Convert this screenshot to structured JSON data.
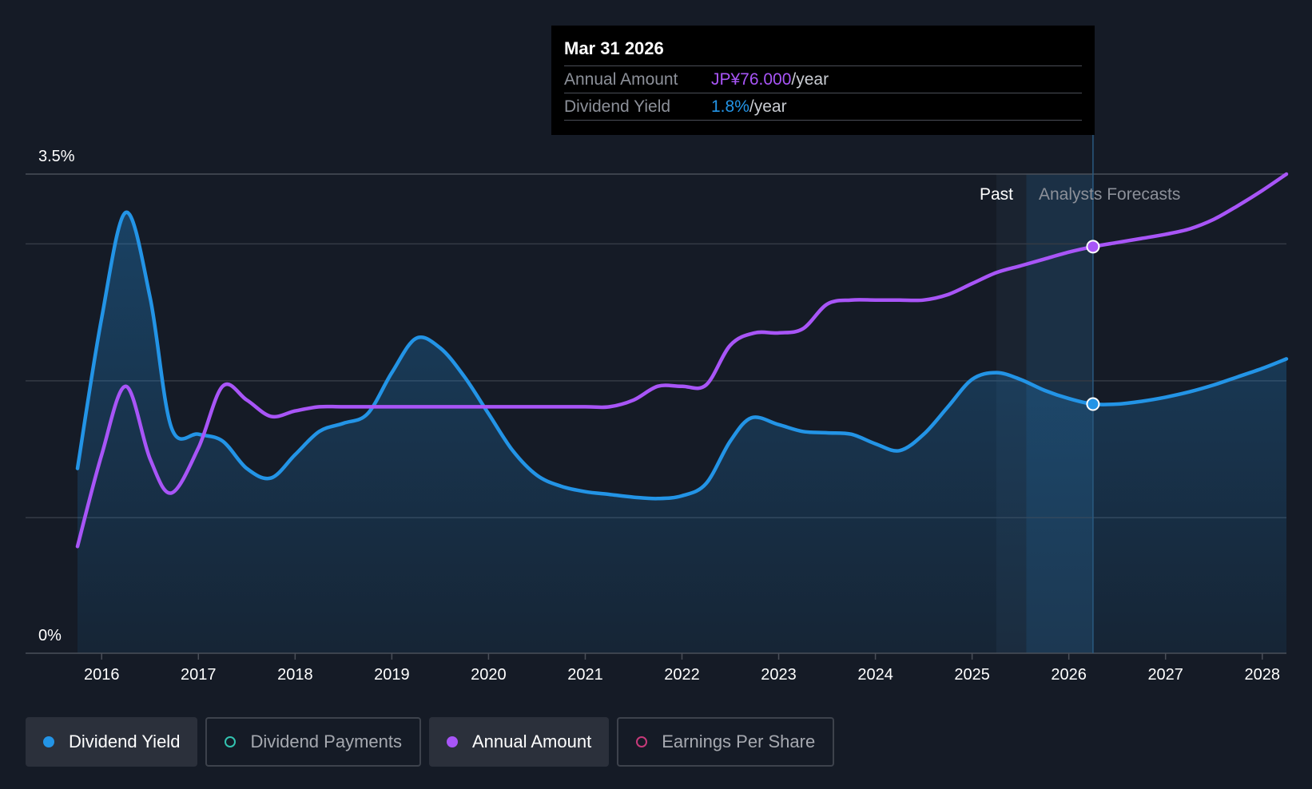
{
  "colors": {
    "background": "#151b26",
    "yield": "#2394e6",
    "annual": "#a855f7",
    "payments": "#33c3b0",
    "eps": "#c73a7a",
    "grid": "#343a45",
    "forecast_band": "#1d3850"
  },
  "tooltip": {
    "date": "Mar 31 2026",
    "annual_label": "Annual Amount",
    "annual_value": "JP¥76.000",
    "annual_unit": "/year",
    "yield_label": "Dividend Yield",
    "yield_value": "1.8%",
    "yield_unit": "/year"
  },
  "region_labels": {
    "past": "Past",
    "forecast": "Analysts Forecasts"
  },
  "legend": [
    {
      "label": "Dividend Yield",
      "icon": "filled-dot",
      "color": "#2394e6",
      "active": true
    },
    {
      "label": "Dividend Payments",
      "icon": "hollow-dot",
      "color": "#33c3b0",
      "active": false
    },
    {
      "label": "Annual Amount",
      "icon": "filled-dot",
      "color": "#a855f7",
      "active": true
    },
    {
      "label": "Earnings Per Share",
      "icon": "hollow-dot",
      "color": "#c73a7a",
      "active": false
    }
  ],
  "chart_data": {
    "type": "line",
    "y_tick_labels": [
      "0%",
      "3.5%"
    ],
    "ylim": [
      0,
      3.5
    ],
    "x_tick_labels": [
      "2016",
      "2017",
      "2018",
      "2019",
      "2020",
      "2021",
      "2022",
      "2023",
      "2024",
      "2025",
      "2026",
      "2027",
      "2028"
    ],
    "xlim": [
      2015.63,
      2028.25
    ],
    "grid": true,
    "past_region": [
      2025.25,
      2025.56
    ],
    "forecast_region": [
      2025.56,
      2026.25
    ],
    "highlight_x": 2026.25,
    "series": [
      {
        "name": "Dividend Yield",
        "color": "#2394e6",
        "filled": true,
        "x": [
          2015.75,
          2016.0,
          2016.25,
          2016.5,
          2016.72,
          2017.0,
          2017.25,
          2017.5,
          2017.75,
          2018.0,
          2018.25,
          2018.5,
          2018.75,
          2019.0,
          2019.25,
          2019.5,
          2019.75,
          2020.0,
          2020.25,
          2020.5,
          2020.75,
          2021.0,
          2021.25,
          2021.5,
          2021.75,
          2022.0,
          2022.25,
          2022.5,
          2022.72,
          2023.0,
          2023.25,
          2023.5,
          2023.75,
          2024.0,
          2024.25,
          2024.5,
          2024.75,
          2025.0,
          2025.25,
          2025.5,
          2025.75,
          2026.0,
          2026.25,
          2026.5,
          2026.75,
          2027.0,
          2027.25,
          2027.5,
          2027.75,
          2028.0,
          2028.25
        ],
        "y": [
          1.35,
          2.45,
          3.22,
          2.6,
          1.65,
          1.6,
          1.55,
          1.35,
          1.28,
          1.45,
          1.62,
          1.68,
          1.75,
          2.05,
          2.3,
          2.23,
          2.02,
          1.75,
          1.48,
          1.3,
          1.22,
          1.18,
          1.16,
          1.14,
          1.13,
          1.15,
          1.24,
          1.55,
          1.72,
          1.67,
          1.62,
          1.61,
          1.6,
          1.53,
          1.48,
          1.6,
          1.8,
          2.0,
          2.05,
          2.0,
          1.92,
          1.86,
          1.82,
          1.82,
          1.84,
          1.87,
          1.91,
          1.96,
          2.02,
          2.08,
          2.15
        ]
      },
      {
        "name": "Annual Amount",
        "color": "#a855f7",
        "filled": false,
        "x": [
          2015.75,
          2016.0,
          2016.25,
          2016.5,
          2016.72,
          2017.0,
          2017.25,
          2017.5,
          2017.75,
          2018.0,
          2018.25,
          2018.5,
          2019.0,
          2019.5,
          2020.0,
          2020.5,
          2021.0,
          2021.25,
          2021.5,
          2021.75,
          2022.0,
          2022.25,
          2022.5,
          2022.75,
          2023.0,
          2023.25,
          2023.5,
          2023.75,
          2024.0,
          2024.25,
          2024.5,
          2024.75,
          2025.0,
          2025.25,
          2025.5,
          2025.75,
          2026.0,
          2026.25,
          2026.5,
          2026.75,
          2027.0,
          2027.25,
          2027.5,
          2027.75,
          2028.0,
          2028.25
        ],
        "y": [
          0.78,
          1.45,
          1.95,
          1.42,
          1.17,
          1.5,
          1.95,
          1.85,
          1.73,
          1.77,
          1.8,
          1.8,
          1.8,
          1.8,
          1.8,
          1.8,
          1.8,
          1.8,
          1.85,
          1.95,
          1.95,
          1.96,
          2.25,
          2.34,
          2.34,
          2.37,
          2.55,
          2.58,
          2.58,
          2.58,
          2.58,
          2.62,
          2.7,
          2.78,
          2.83,
          2.88,
          2.93,
          2.97,
          3.0,
          3.03,
          3.06,
          3.1,
          3.17,
          3.27,
          3.38,
          3.5
        ]
      }
    ]
  }
}
